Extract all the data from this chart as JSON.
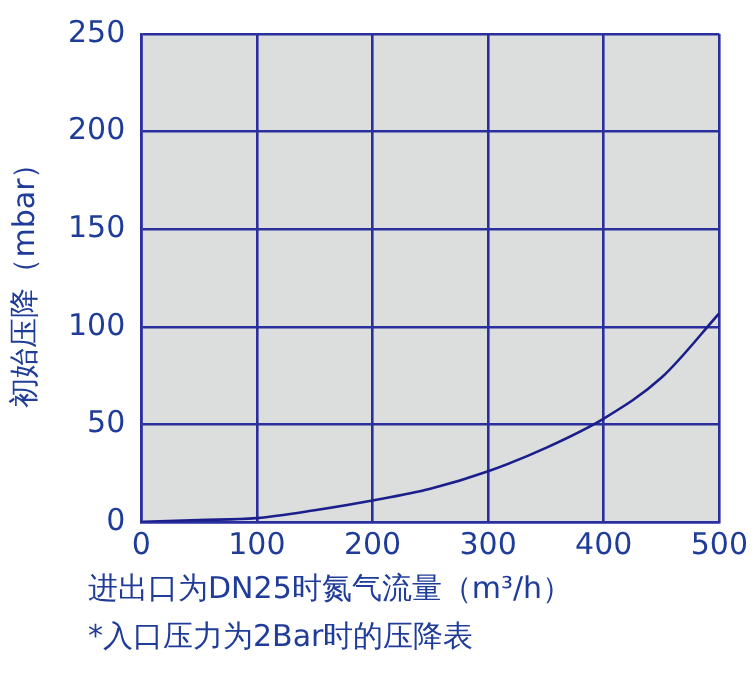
{
  "chart_data": {
    "type": "line",
    "xlabel": "进出口为DN25时氮气流量（m³/h）",
    "ylabel": "初始压降（mbar）",
    "annotations": [
      "*入口压力为2Bar时的压降表"
    ],
    "x": [
      0,
      50,
      100,
      150,
      200,
      250,
      300,
      350,
      400,
      450,
      500
    ],
    "series": [
      {
        "color": "#1a1f8c",
        "values": [
          0,
          1,
          2,
          6,
          11,
          17,
          26,
          38,
          53,
          74,
          107
        ]
      }
    ],
    "xlim": [
      0,
      500
    ],
    "xticks": [
      0,
      100,
      200,
      300,
      400,
      500
    ],
    "ylim": [
      0,
      250
    ],
    "yticks": [
      0,
      50,
      100,
      150,
      200,
      250
    ],
    "grid": true,
    "legend": false,
    "marker": "none",
    "line_style": "solid"
  }
}
